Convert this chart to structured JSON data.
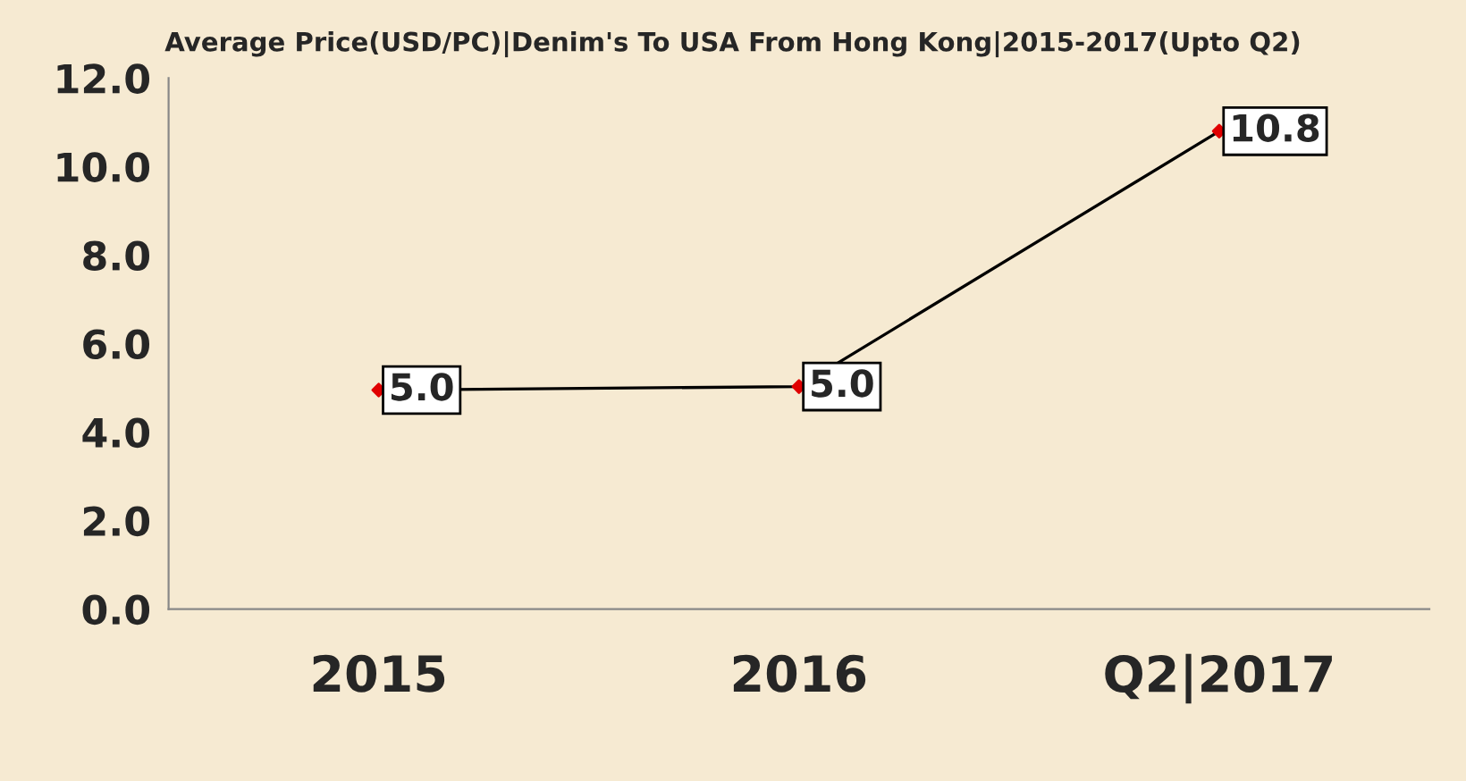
{
  "chart_data": {
    "type": "line",
    "title": "Average Price(USD/PC)|Denim's To USA From Hong Kong|2015-2017(Upto Q2)",
    "categories": [
      "2015",
      "2016",
      "Q2|2017"
    ],
    "series": [
      {
        "color": "#000000",
        "colors": [
          "#e00000",
          "#e00000",
          "#e00000"
        ],
        "values": [
          4.95,
          5.03,
          10.8
        ],
        "value_labels": [
          "5.0",
          "5.0",
          "10.8"
        ]
      }
    ],
    "ylim": [
      0,
      12
    ],
    "yticks": [
      {
        "value": 0,
        "label": "0.0"
      },
      {
        "value": 2,
        "label": "2.0"
      },
      {
        "value": 4,
        "label": "4.0"
      },
      {
        "value": 6,
        "label": "6.0"
      },
      {
        "value": 8,
        "label": "8.0"
      },
      {
        "value": 10,
        "label": "10.0"
      },
      {
        "value": 12,
        "label": "12.0"
      }
    ],
    "grid": false,
    "legend": false,
    "marker": "diamond"
  }
}
